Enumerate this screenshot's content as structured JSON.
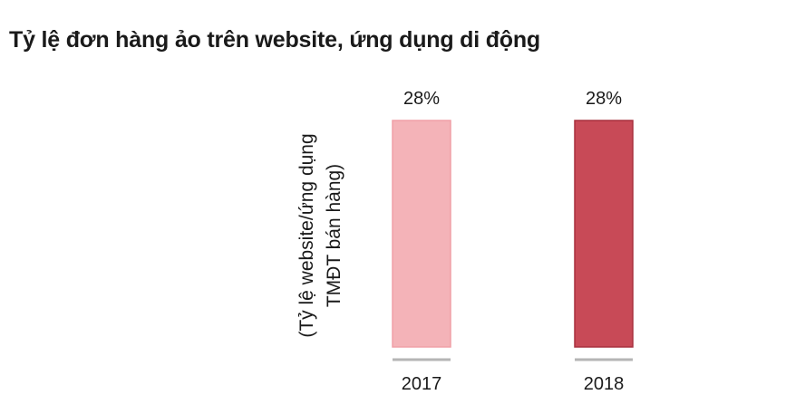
{
  "chart_data": {
    "type": "bar",
    "title": "Tỷ lệ đơn hàng ảo trên website, ứng dụng di động",
    "ylabel_lines": [
      "(Tỷ lệ website/ứng dụng",
      "TMĐT bán hàng)"
    ],
    "categories": [
      "2017",
      "2018"
    ],
    "values": [
      28,
      28
    ],
    "value_labels": [
      "28%",
      "28%"
    ],
    "colors": [
      "#f4b3b8",
      "#c84a57"
    ],
    "grid": false,
    "legend": "none"
  }
}
